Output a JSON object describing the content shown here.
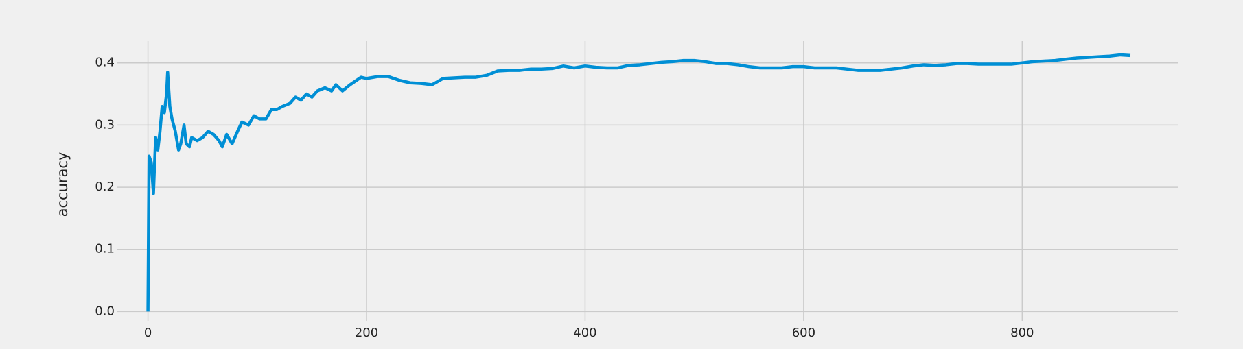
{
  "chart_data": {
    "type": "line",
    "y_label": "accuracy",
    "x": [
      0,
      1,
      3,
      5,
      7,
      9,
      11,
      13,
      15,
      17,
      18,
      20,
      22,
      25,
      28,
      30,
      33,
      35,
      38,
      40,
      45,
      50,
      55,
      60,
      65,
      68,
      72,
      77,
      82,
      86,
      92,
      97,
      102,
      108,
      113,
      118,
      123,
      130,
      135,
      140,
      145,
      150,
      155,
      162,
      168,
      172,
      178,
      185,
      195,
      200,
      210,
      220,
      230,
      240,
      250,
      260,
      270,
      280,
      290,
      300,
      310,
      320,
      330,
      340,
      350,
      360,
      370,
      380,
      390,
      400,
      410,
      420,
      430,
      440,
      450,
      460,
      470,
      480,
      490,
      500,
      510,
      520,
      530,
      540,
      550,
      560,
      570,
      580,
      590,
      600,
      610,
      620,
      630,
      640,
      650,
      660,
      670,
      680,
      690,
      700,
      710,
      720,
      730,
      740,
      750,
      760,
      770,
      780,
      790,
      800,
      810,
      820,
      830,
      840,
      850,
      860,
      870,
      880,
      890,
      899
    ],
    "series": [
      {
        "name": "accuracy",
        "color": "#008fd5",
        "values": [
          0,
          0.25,
          0.24,
          0.19,
          0.28,
          0.26,
          0.29,
          0.33,
          0.32,
          0.35,
          0.385,
          0.33,
          0.31,
          0.29,
          0.26,
          0.27,
          0.3,
          0.27,
          0.265,
          0.28,
          0.275,
          0.28,
          0.29,
          0.285,
          0.275,
          0.265,
          0.285,
          0.27,
          0.29,
          0.305,
          0.3,
          0.315,
          0.31,
          0.31,
          0.325,
          0.325,
          0.33,
          0.335,
          0.345,
          0.34,
          0.35,
          0.345,
          0.355,
          0.36,
          0.355,
          0.365,
          0.355,
          0.365,
          0.377,
          0.375,
          0.378,
          0.378,
          0.372,
          0.368,
          0.367,
          0.365,
          0.375,
          0.376,
          0.377,
          0.377,
          0.38,
          0.387,
          0.388,
          0.388,
          0.39,
          0.39,
          0.391,
          0.395,
          0.392,
          0.395,
          0.393,
          0.392,
          0.392,
          0.396,
          0.397,
          0.399,
          0.401,
          0.402,
          0.404,
          0.404,
          0.402,
          0.399,
          0.399,
          0.397,
          0.394,
          0.392,
          0.392,
          0.392,
          0.394,
          0.394,
          0.392,
          0.392,
          0.392,
          0.39,
          0.388,
          0.388,
          0.388,
          0.39,
          0.392,
          0.395,
          0.397,
          0.396,
          0.397,
          0.399,
          0.399,
          0.398,
          0.398,
          0.398,
          0.398,
          0.4,
          0.402,
          0.403,
          0.404,
          0.406,
          0.408,
          0.409,
          0.41,
          0.411,
          0.413,
          0.412
        ]
      }
    ],
    "xlim": [
      -28,
      943
    ],
    "ylim": [
      -0.015,
      0.435
    ],
    "xticks": [
      0,
      200,
      400,
      600,
      800
    ],
    "yticks": [
      {
        "value": 0,
        "label": "0.0"
      },
      0.1,
      0.2,
      0.3,
      0.4
    ],
    "grid": true
  }
}
